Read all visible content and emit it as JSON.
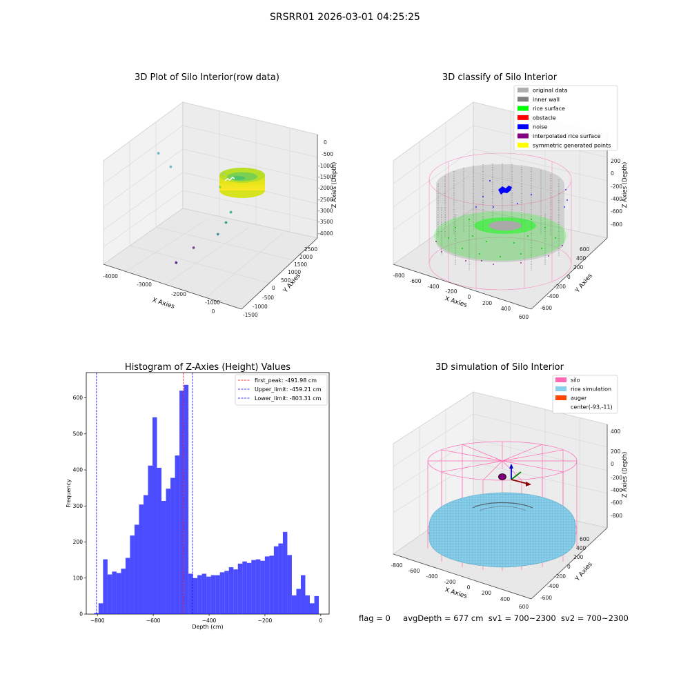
{
  "figure": {
    "suptitle": "SRSRR01 2026-03-01 04:25:25",
    "status_line": {
      "flag": "flag = 0",
      "avg_depth": "avgDepth = 677 cm",
      "sv1": "sv1 = 700~2300",
      "sv2": "sv2 = 700~2300"
    }
  },
  "chart_data": [
    {
      "type": "scatter",
      "projection": "3d",
      "title": "3D Plot of Silo Interior(row data)",
      "xlabel": "X Axies",
      "ylabel": "Y Axies",
      "zlabel": "Z Axies (Depth)",
      "x_ticks": [
        "-4000",
        "-3000",
        "-2000",
        "-1000",
        "0"
      ],
      "y_ticks": [
        "-1500",
        "-1000",
        "-500",
        "0",
        "500",
        "1000",
        "1500",
        "2000",
        "2500"
      ],
      "z_ticks": [
        "0",
        "-500",
        "-1000",
        "-1500",
        "-2000",
        "-2500",
        "-3000",
        "-3500",
        "-4000"
      ],
      "colormap": "viridis",
      "grid": true,
      "outlier_points_approx": [
        {
          "x": -4050,
          "y": 1300,
          "z": -1500,
          "color": "#6fb7c4"
        },
        {
          "x": -3600,
          "y": 1200,
          "z": -1800,
          "color": "#7ab8c4"
        },
        {
          "x": -1750,
          "y": 900,
          "z": -1100,
          "color": "#a3d47a"
        },
        {
          "x": -1400,
          "y": 700,
          "z": -2400,
          "color": "#44b58a"
        },
        {
          "x": -1500,
          "y": 600,
          "z": -2800,
          "color": "#3aa48e"
        },
        {
          "x": -1700,
          "y": 500,
          "z": -3300,
          "color": "#3f8fa0"
        },
        {
          "x": -2300,
          "y": 200,
          "z": -3900,
          "color": "#7d4b9a"
        },
        {
          "x": -2400,
          "y": -600,
          "z": -4000,
          "color": "#5b2a86"
        }
      ]
    },
    {
      "type": "scatter",
      "projection": "3d",
      "title": "3D classify of Silo Interior",
      "xlabel": "X Axies",
      "ylabel": "Y Axies",
      "zlabel": "Z Axies (Depth)",
      "x_ticks": [
        "-800",
        "-600",
        "-400",
        "-200",
        "0",
        "200",
        "400",
        "600"
      ],
      "y_ticks": [
        "-600",
        "-400",
        "-200",
        "0",
        "200",
        "400",
        "600"
      ],
      "z_ticks": [
        "200",
        "0",
        "-200",
        "-400",
        "-600",
        "-800"
      ],
      "legend_position": "top-right",
      "grid": true,
      "legend": [
        {
          "label": "original data",
          "color": "#b0b0b0"
        },
        {
          "label": "inner wall",
          "color": "#808080"
        },
        {
          "label": "rice surface",
          "color": "#00ff00"
        },
        {
          "label": "obstacle",
          "color": "#ff0000"
        },
        {
          "label": "noise",
          "color": "#0000ff"
        },
        {
          "label": "interpolated rice surface",
          "color": "#800080"
        },
        {
          "label": "symmetric generated points",
          "color": "#ffff00"
        }
      ]
    },
    {
      "type": "bar",
      "title": "Histogram of Z-Axies (Height) Values",
      "xlabel": "Depth (cm)",
      "ylabel": "Frequency",
      "xlim": [
        -840,
        30
      ],
      "ylim": [
        0,
        670
      ],
      "x_ticks": [
        -800,
        -600,
        -400,
        -200,
        0
      ],
      "y_ticks": [
        0,
        100,
        200,
        300,
        400,
        500,
        600
      ],
      "bin_start": -812.0,
      "bin_width": 16.1,
      "values": [
        3,
        30,
        152,
        110,
        118,
        114,
        126,
        156,
        218,
        248,
        304,
        330,
        412,
        546,
        406,
        314,
        348,
        378,
        440,
        620,
        636,
        112,
        100,
        108,
        112,
        104,
        108,
        108,
        116,
        120,
        130,
        124,
        140,
        146,
        142,
        150,
        152,
        148,
        160,
        162,
        188,
        196,
        228,
        164,
        52,
        70,
        108,
        52,
        30,
        50
      ],
      "bar_color": "#0000ff",
      "bar_alpha": 0.7,
      "legend_position": "top-right",
      "lines": [
        {
          "label": "first_peak: -491.98 cm",
          "x": -491.98,
          "color": "#ff0000"
        },
        {
          "label": "Upper_limit: -459.21 cm",
          "x": -459.21,
          "color": "#0000ff"
        },
        {
          "label": "Lower_limit: -803.31 cm",
          "x": -803.31,
          "color": "#0000ff"
        }
      ]
    },
    {
      "type": "surface",
      "projection": "3d",
      "title": "3D simulation of Silo Interior",
      "xlabel": "X Axies",
      "ylabel": "Y Axies",
      "zlabel": "Z Axies (Depth)",
      "x_ticks": [
        "-800",
        "-600",
        "-400",
        "-200",
        "0",
        "200",
        "400",
        "600"
      ],
      "y_ticks": [
        "-600",
        "-400",
        "-200",
        "0",
        "200",
        "400",
        "600"
      ],
      "z_ticks": [
        "400",
        "200",
        "0",
        "-200",
        "-400",
        "-600",
        "-800"
      ],
      "legend_position": "top-right",
      "grid": true,
      "legend": [
        {
          "label": "silo",
          "color": "#ff69b4"
        },
        {
          "label": "rice simulation",
          "color": "#87ceeb"
        },
        {
          "label": "auger",
          "color": "#ff4500"
        },
        {
          "label": "center(-93,-11)",
          "color": ""
        }
      ]
    }
  ]
}
